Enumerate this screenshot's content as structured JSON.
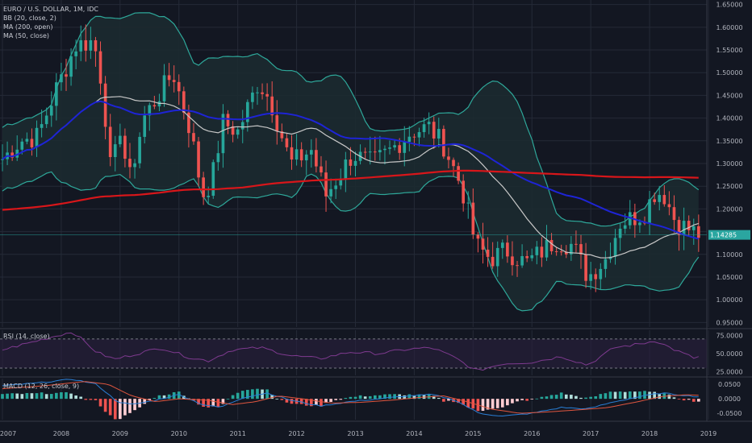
{
  "colors": {
    "background": "#131722",
    "grid": "#252a37",
    "up": "#26a69a",
    "down": "#ef5350",
    "bb_band": "#2ea89a",
    "bb_fill": "#1c2a30",
    "bb_basis": "#c8c8c8",
    "ma200": "#d8161a",
    "ma50": "#1e24d6",
    "rsi": "#7e3a8f",
    "macd_line": "#2a7fd6",
    "signal_line": "#e0563f",
    "price_tag": "#2aa6a0"
  },
  "main_legend": {
    "title": "EURO / U.S. DOLLAR, 1M, IDC",
    "bb": "BB (20, close, 2)",
    "ma200": "MA (200, open)",
    "ma50": "MA (50, close)"
  },
  "rsi_legend": "RSI (14, close)",
  "macd_legend": "MACD (12, 26, close, 9)",
  "price_tag": "1.14285",
  "chart_data": [
    {
      "type": "line",
      "subtype": "candlestick",
      "title": "EURO / U.S. DOLLAR, 1M, IDC",
      "x_ticks": [
        "2007",
        "2008",
        "2009",
        "2010",
        "2011",
        "2012",
        "2013",
        "2014",
        "2015",
        "2016",
        "2017",
        "2018",
        "2019"
      ],
      "y_ticks": [
        "0.95000",
        "1.00000",
        "1.05000",
        "1.10000",
        "1.15000",
        "1.20000",
        "1.25000",
        "1.30000",
        "1.35000",
        "1.40000",
        "1.45000",
        "1.50000",
        "1.55000",
        "1.60000",
        "1.65000"
      ],
      "ylim": [
        0.94,
        1.66
      ],
      "last_price": 1.14285,
      "anchors": [
        [
          2007.0,
          1.31
        ],
        [
          2007.3,
          1.35
        ],
        [
          2007.6,
          1.36
        ],
        [
          2007.9,
          1.46
        ],
        [
          2008.25,
          1.56
        ],
        [
          2008.55,
          1.57
        ],
        [
          2008.7,
          1.47
        ],
        [
          2008.85,
          1.27
        ],
        [
          2009.0,
          1.38
        ],
        [
          2009.15,
          1.26
        ],
        [
          2009.4,
          1.4
        ],
        [
          2009.9,
          1.5
        ],
        [
          2010.2,
          1.37
        ],
        [
          2010.4,
          1.23
        ],
        [
          2010.55,
          1.26
        ],
        [
          2010.75,
          1.39
        ],
        [
          2011.0,
          1.37
        ],
        [
          2011.35,
          1.48
        ],
        [
          2011.55,
          1.44
        ],
        [
          2011.9,
          1.3
        ],
        [
          2012.25,
          1.33
        ],
        [
          2012.5,
          1.23
        ],
        [
          2012.95,
          1.32
        ],
        [
          2013.3,
          1.3
        ],
        [
          2013.6,
          1.33
        ],
        [
          2013.95,
          1.37
        ],
        [
          2014.25,
          1.38
        ],
        [
          2014.5,
          1.34
        ],
        [
          2014.8,
          1.25
        ],
        [
          2015.05,
          1.12
        ],
        [
          2015.3,
          1.09
        ],
        [
          2015.55,
          1.11
        ],
        [
          2015.9,
          1.08
        ],
        [
          2016.4,
          1.13
        ],
        [
          2016.7,
          1.12
        ],
        [
          2016.95,
          1.05
        ],
        [
          2017.25,
          1.09
        ],
        [
          2017.5,
          1.17
        ],
        [
          2017.9,
          1.19
        ],
        [
          2018.1,
          1.24
        ],
        [
          2018.25,
          1.23
        ],
        [
          2018.45,
          1.17
        ],
        [
          2018.75,
          1.15
        ],
        [
          2018.9,
          1.14
        ]
      ]
    },
    {
      "type": "line",
      "title": "RSI (14, close)",
      "y_ticks": [
        "75.0000",
        "50.0000",
        "25.0000"
      ],
      "ylim": [
        20,
        82
      ],
      "overbought": 70,
      "oversold": 30,
      "anchors": [
        [
          2007.0,
          55
        ],
        [
          2007.8,
          72
        ],
        [
          2008.2,
          80
        ],
        [
          2008.6,
          52
        ],
        [
          2008.9,
          42
        ],
        [
          2009.2,
          48
        ],
        [
          2009.7,
          58
        ],
        [
          2010.2,
          44
        ],
        [
          2010.5,
          40
        ],
        [
          2010.9,
          55
        ],
        [
          2011.4,
          58
        ],
        [
          2011.9,
          47
        ],
        [
          2012.4,
          43
        ],
        [
          2012.9,
          52
        ],
        [
          2013.4,
          50
        ],
        [
          2013.9,
          56
        ],
        [
          2014.3,
          58
        ],
        [
          2014.7,
          44
        ],
        [
          2015.05,
          26
        ],
        [
          2015.5,
          36
        ],
        [
          2016.0,
          38
        ],
        [
          2016.5,
          46
        ],
        [
          2016.95,
          34
        ],
        [
          2017.4,
          58
        ],
        [
          2017.9,
          64
        ],
        [
          2018.1,
          68
        ],
        [
          2018.4,
          56
        ],
        [
          2018.75,
          44
        ],
        [
          2018.9,
          46
        ]
      ]
    },
    {
      "type": "bar",
      "title": "MACD (12, 26, close, 9)",
      "y_ticks": [
        "0.0500",
        "0.0000",
        "-0.0500"
      ],
      "ylim": [
        -0.072,
        0.07
      ],
      "macd_anchors": [
        [
          2007.0,
          0.045
        ],
        [
          2007.6,
          0.055
        ],
        [
          2008.2,
          0.068
        ],
        [
          2008.6,
          0.05
        ],
        [
          2008.95,
          -0.01
        ],
        [
          2009.2,
          -0.02
        ],
        [
          2009.6,
          -0.005
        ],
        [
          2010.0,
          0.015
        ],
        [
          2010.4,
          -0.02
        ],
        [
          2010.7,
          -0.03
        ],
        [
          2011.1,
          0.005
        ],
        [
          2011.5,
          0.02
        ],
        [
          2011.9,
          -0.005
        ],
        [
          2012.4,
          -0.025
        ],
        [
          2012.9,
          -0.01
        ],
        [
          2013.4,
          0.0
        ],
        [
          2013.9,
          0.01
        ],
        [
          2014.3,
          0.015
        ],
        [
          2014.7,
          -0.005
        ],
        [
          2015.1,
          -0.05
        ],
        [
          2015.5,
          -0.06
        ],
        [
          2016.0,
          -0.05
        ],
        [
          2016.5,
          -0.03
        ],
        [
          2016.95,
          -0.035
        ],
        [
          2017.4,
          -0.01
        ],
        [
          2017.9,
          0.01
        ],
        [
          2018.2,
          0.02
        ],
        [
          2018.6,
          0.012
        ],
        [
          2018.9,
          0.005
        ]
      ],
      "signal_anchors": [
        [
          2007.0,
          0.035
        ],
        [
          2007.7,
          0.045
        ],
        [
          2008.4,
          0.06
        ],
        [
          2008.8,
          0.05
        ],
        [
          2009.2,
          0.01
        ],
        [
          2009.6,
          -0.01
        ],
        [
          2010.0,
          0.0
        ],
        [
          2010.5,
          -0.005
        ],
        [
          2010.9,
          -0.02
        ],
        [
          2011.3,
          -0.01
        ],
        [
          2011.7,
          0.01
        ],
        [
          2012.1,
          0.0
        ],
        [
          2012.6,
          -0.015
        ],
        [
          2013.1,
          -0.012
        ],
        [
          2013.6,
          -0.005
        ],
        [
          2014.1,
          0.005
        ],
        [
          2014.5,
          0.01
        ],
        [
          2014.9,
          -0.01
        ],
        [
          2015.3,
          -0.035
        ],
        [
          2015.8,
          -0.05
        ],
        [
          2016.3,
          -0.045
        ],
        [
          2016.8,
          -0.038
        ],
        [
          2017.3,
          -0.03
        ],
        [
          2017.8,
          -0.01
        ],
        [
          2018.2,
          0.008
        ],
        [
          2018.6,
          0.014
        ],
        [
          2018.9,
          0.012
        ]
      ]
    }
  ]
}
